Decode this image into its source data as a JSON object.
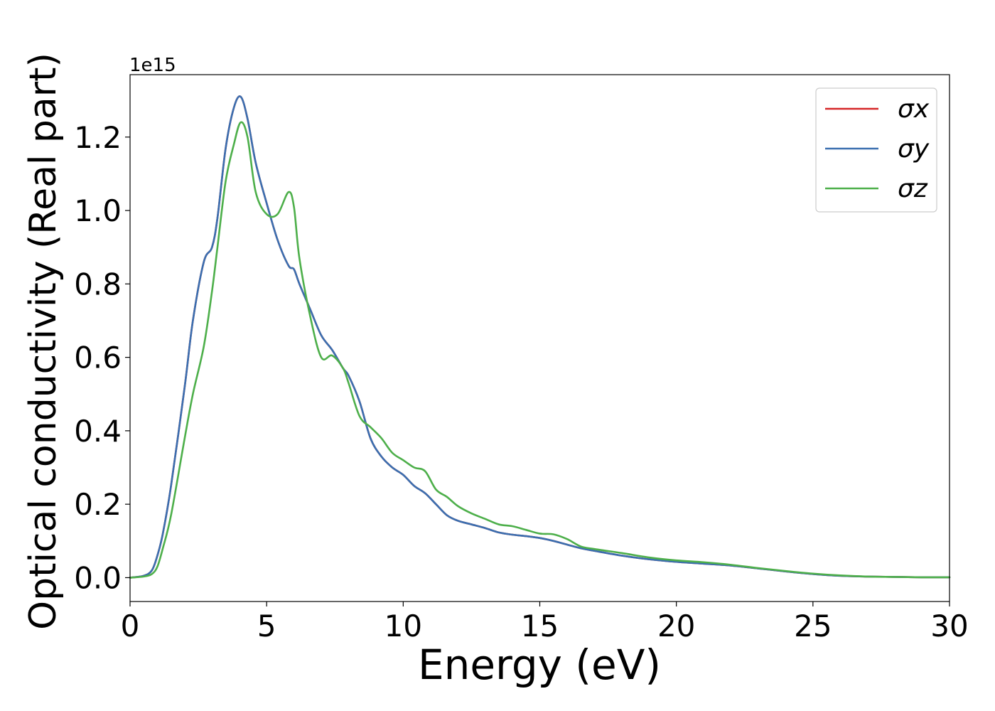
{
  "chart_data": {
    "type": "line",
    "title": "",
    "xlabel": "Energy (eV)",
    "ylabel": "Optical conductivity (Real part)",
    "y_offset_label": "1e15",
    "xlim": [
      0,
      30
    ],
    "ylim": [
      -0.065,
      1.37
    ],
    "x_ticks": [
      0,
      5,
      10,
      15,
      20,
      25,
      30
    ],
    "x_tick_labels": [
      "0",
      "5",
      "10",
      "15",
      "20",
      "25",
      "30"
    ],
    "y_ticks": [
      0.0,
      0.2,
      0.4,
      0.6,
      0.8,
      1.0,
      1.2
    ],
    "y_tick_labels": [
      "0.0",
      "0.2",
      "0.4",
      "0.6",
      "0.8",
      "1.0",
      "1.2"
    ],
    "grid": false,
    "legend_position": "top-right",
    "x": [
      0.0,
      0.5,
      0.8,
      1.0,
      1.2,
      1.5,
      2.0,
      2.3,
      2.7,
      3.0,
      3.2,
      3.5,
      3.8,
      4.05,
      4.3,
      4.6,
      5.0,
      5.4,
      5.8,
      6.0,
      6.2,
      6.6,
      7.0,
      7.4,
      7.8,
      8.0,
      8.4,
      8.8,
      9.2,
      9.6,
      10.0,
      10.4,
      10.8,
      11.2,
      11.6,
      12.0,
      12.5,
      13.0,
      13.5,
      14.0,
      14.5,
      15.0,
      15.5,
      16.0,
      16.5,
      17.0,
      18.0,
      19.0,
      20.0,
      21.0,
      22.0,
      23.0,
      24.0,
      25.0,
      26.0,
      27.0,
      28.0,
      29.0,
      30.0
    ],
    "series": [
      {
        "name": "σx",
        "color": "#d62728",
        "values": [
          0.0,
          0.005,
          0.02,
          0.06,
          0.12,
          0.25,
          0.52,
          0.7,
          0.86,
          0.9,
          0.98,
          1.17,
          1.28,
          1.31,
          1.25,
          1.13,
          1.02,
          0.92,
          0.85,
          0.84,
          0.8,
          0.73,
          0.66,
          0.62,
          0.57,
          0.55,
          0.48,
          0.38,
          0.33,
          0.3,
          0.28,
          0.25,
          0.23,
          0.2,
          0.17,
          0.155,
          0.145,
          0.135,
          0.123,
          0.117,
          0.113,
          0.108,
          0.1,
          0.09,
          0.08,
          0.073,
          0.06,
          0.05,
          0.043,
          0.038,
          0.033,
          0.025,
          0.017,
          0.01,
          0.005,
          0.003,
          0.002,
          0.001,
          0.001
        ]
      },
      {
        "name": "σy",
        "color": "#3a6fb0",
        "values": [
          0.0,
          0.005,
          0.02,
          0.06,
          0.12,
          0.25,
          0.52,
          0.7,
          0.86,
          0.9,
          0.98,
          1.17,
          1.28,
          1.31,
          1.25,
          1.13,
          1.02,
          0.92,
          0.85,
          0.84,
          0.8,
          0.73,
          0.66,
          0.62,
          0.57,
          0.55,
          0.48,
          0.38,
          0.33,
          0.3,
          0.28,
          0.25,
          0.23,
          0.2,
          0.17,
          0.155,
          0.145,
          0.135,
          0.123,
          0.117,
          0.113,
          0.108,
          0.1,
          0.09,
          0.08,
          0.073,
          0.06,
          0.05,
          0.043,
          0.038,
          0.033,
          0.025,
          0.017,
          0.01,
          0.005,
          0.003,
          0.002,
          0.001,
          0.001
        ]
      },
      {
        "name": "σz",
        "color": "#4daf4a",
        "values": [
          0.0,
          0.003,
          0.01,
          0.03,
          0.08,
          0.17,
          0.38,
          0.5,
          0.63,
          0.78,
          0.9,
          1.08,
          1.18,
          1.24,
          1.2,
          1.05,
          0.99,
          0.99,
          1.05,
          1.01,
          0.87,
          0.71,
          0.6,
          0.605,
          0.57,
          0.53,
          0.44,
          0.41,
          0.38,
          0.34,
          0.32,
          0.3,
          0.29,
          0.24,
          0.22,
          0.195,
          0.175,
          0.16,
          0.145,
          0.14,
          0.13,
          0.12,
          0.118,
          0.105,
          0.085,
          0.078,
          0.067,
          0.055,
          0.047,
          0.042,
          0.035,
          0.026,
          0.018,
          0.011,
          0.006,
          0.003,
          0.002,
          0.001,
          0.001
        ]
      }
    ]
  }
}
